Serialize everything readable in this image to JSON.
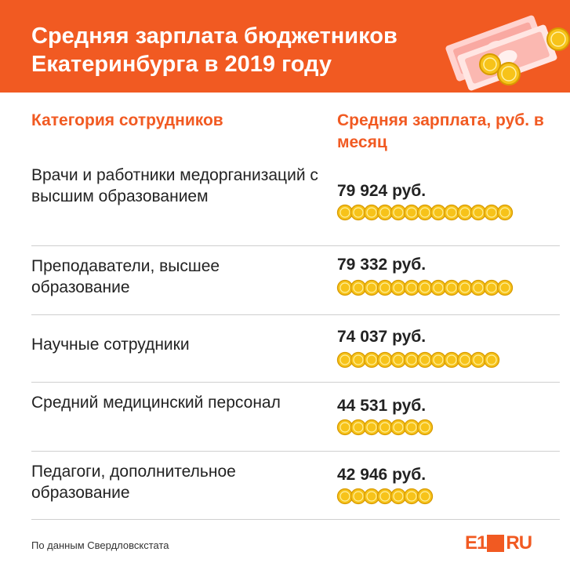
{
  "header": {
    "title": "Средняя зарплата бюджетников Екатеринбурга в 2019 году",
    "bg_color": "#f15a22"
  },
  "chart_data": {
    "type": "table",
    "columns": [
      "Категория сотрудников",
      "Средняя зарплата, руб. в месяц"
    ],
    "unit": "руб.",
    "rows": [
      {
        "category": "Врачи и работники медорганизаций с высшим образованием",
        "value": 79924,
        "label": "79 924 руб."
      },
      {
        "category": "Преподаватели, высшее образование",
        "value": 79332,
        "label": "79 332 руб."
      },
      {
        "category": "Научные сотрудники",
        "value": 74037,
        "label": "74 037 руб."
      },
      {
        "category": "Средний медицинский персонал",
        "value": 44531,
        "label": "44 531 руб."
      },
      {
        "category": "Педагоги, дополнительное образование",
        "value": 42946,
        "label": "42 946 руб."
      }
    ],
    "coin_color": "#f7c31a"
  },
  "footer": {
    "source": "По данным Свердловскстата",
    "logo_left": "E1",
    "logo_right": "RU"
  }
}
